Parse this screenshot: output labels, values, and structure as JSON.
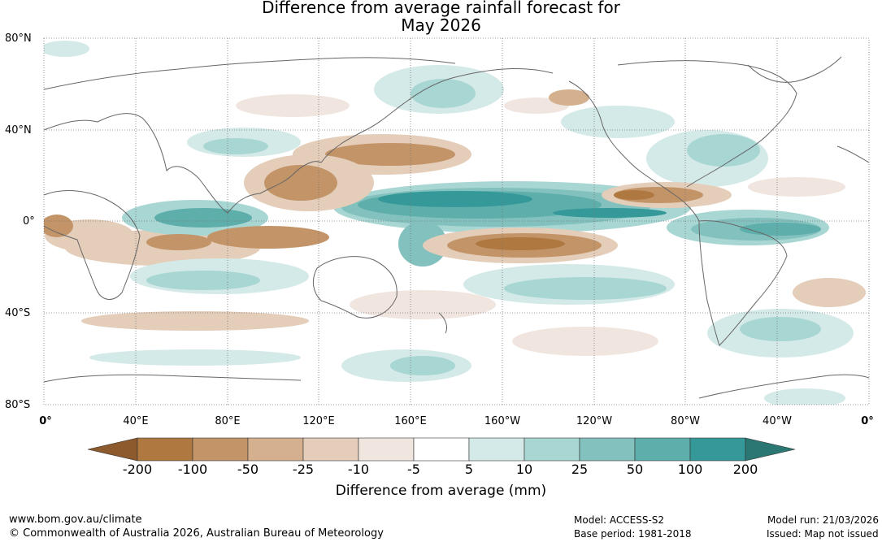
{
  "title": {
    "line1": "Difference from average rainfall forecast for",
    "line2": "May 2026"
  },
  "map": {
    "lat_labels": [
      "80°N",
      "40°N",
      "0°",
      "40°S",
      "80°S"
    ],
    "lon_labels": [
      "0°",
      "40°E",
      "80°E",
      "120°E",
      "160°E",
      "160°W",
      "120°W",
      "80°W",
      "40°W",
      "0°"
    ]
  },
  "colorbar": {
    "title": "Difference from average (mm)",
    "tick_labels": [
      "-200",
      "-100",
      "-50",
      "-25",
      "-10",
      "-5",
      "5",
      "10",
      "25",
      "50",
      "100",
      "200"
    ],
    "colors": [
      "#8c5a2c",
      "#ae7840",
      "#c29468",
      "#d4b08e",
      "#e4cdb9",
      "#f0e6df",
      "#ffffff",
      "#d4eae8",
      "#a8d6d3",
      "#83c1bf",
      "#5eaeab",
      "#35999a",
      "#2a7773"
    ]
  },
  "footer": {
    "url": "www.bom.gov.au/climate",
    "copyright": "© Commonwealth of Australia 2026, Australian Bureau of Meteorology",
    "model": "Model: ACCESS-S2",
    "base_period": "Base period: 1981-2018",
    "model_run": "Model run: 21/03/2026",
    "issued": "Issued: Map not issued"
  }
}
